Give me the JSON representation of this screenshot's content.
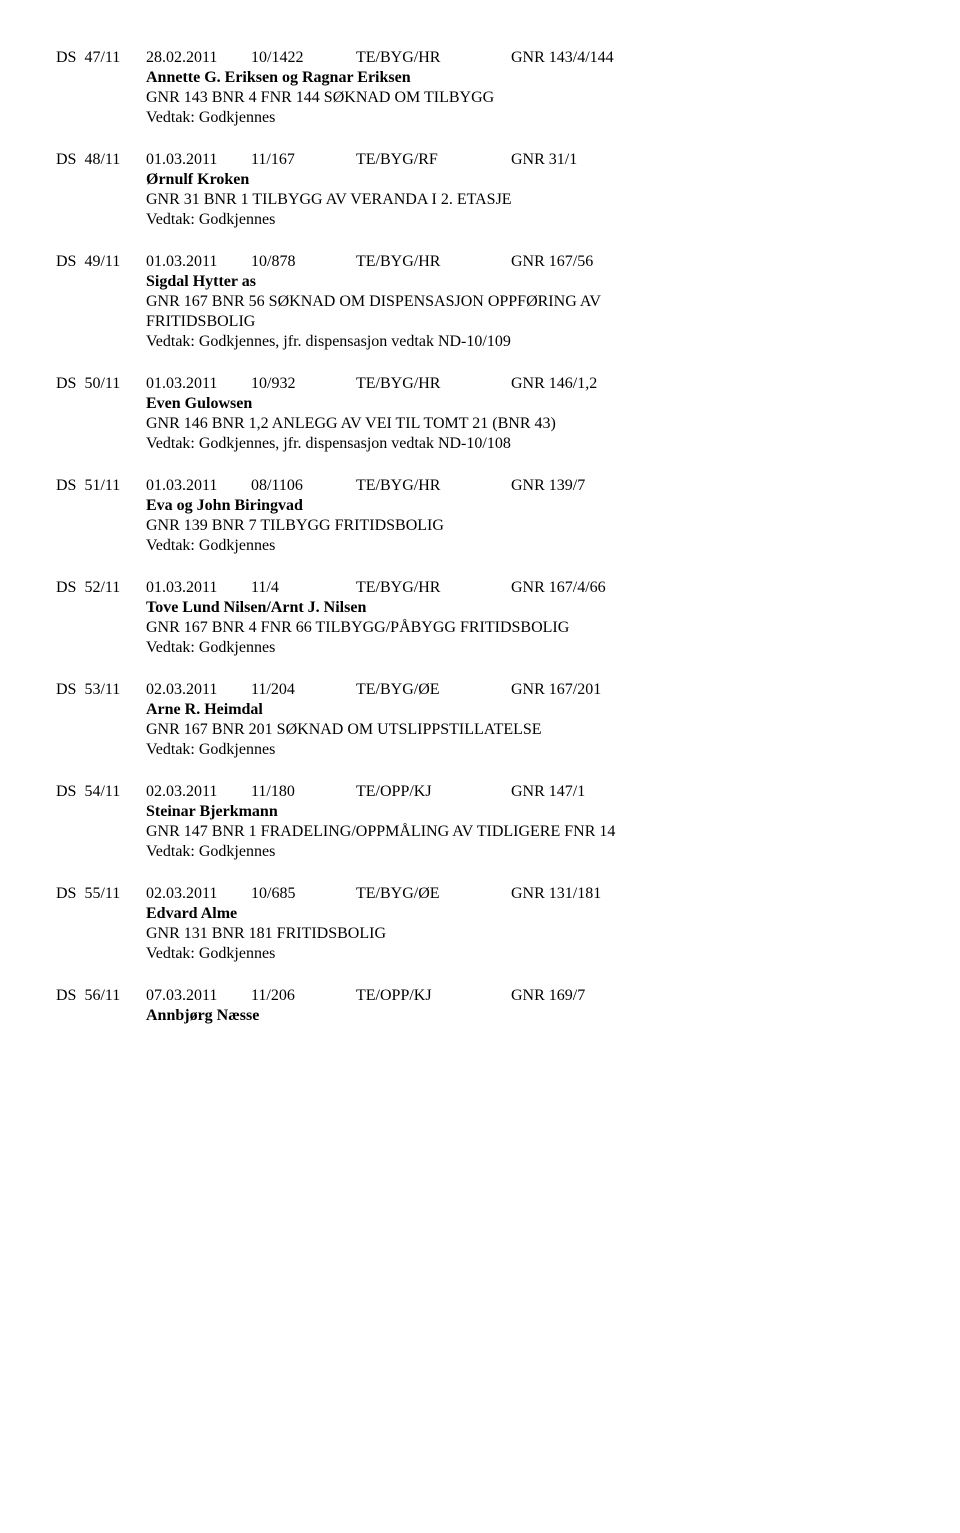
{
  "entries": [
    {
      "ds": "DS  47/11",
      "date": "28.02.2011",
      "case": "10/1422",
      "dept": "TE/BYG/HR",
      "gnr": "GNR 143/4/144",
      "party": "Annette G. Eriksen og Ragnar Eriksen",
      "lines": [
        "GNR 143 BNR 4 FNR 144 SØKNAD OM TILBYGG",
        "Vedtak: Godkjennes"
      ]
    },
    {
      "ds": "DS  48/11",
      "date": "01.03.2011",
      "case": "11/167",
      "dept": "TE/BYG/RF",
      "gnr": "GNR 31/1",
      "party": "Ørnulf Kroken",
      "lines": [
        "GNR 31 BNR 1 TILBYGG AV VERANDA I 2. ETASJE",
        "Vedtak: Godkjennes"
      ]
    },
    {
      "ds": "DS  49/11",
      "date": "01.03.2011",
      "case": "10/878",
      "dept": "TE/BYG/HR",
      "gnr": "GNR 167/56",
      "party": "Sigdal Hytter as",
      "lines": [
        "GNR 167 BNR 56 SØKNAD OM DISPENSASJON OPPFØRING AV",
        "FRITIDSBOLIG",
        "Vedtak: Godkjennes, jfr. dispensasjon vedtak ND-10/109"
      ]
    },
    {
      "ds": "DS  50/11",
      "date": "01.03.2011",
      "case": "10/932",
      "dept": "TE/BYG/HR",
      "gnr": "GNR 146/1,2",
      "party": "Even Gulowsen",
      "lines": [
        "GNR 146 BNR 1,2  ANLEGG AV VEI TIL TOMT 21 (BNR 43)",
        "Vedtak: Godkjennes, jfr. dispensasjon vedtak ND-10/108"
      ]
    },
    {
      "ds": "DS  51/11",
      "date": "01.03.2011",
      "case": "08/1106",
      "dept": "TE/BYG/HR",
      "gnr": "GNR 139/7",
      "party": "Eva og John Biringvad",
      "lines": [
        "GNR 139 BNR 7 TILBYGG FRITIDSBOLIG",
        "Vedtak: Godkjennes"
      ]
    },
    {
      "ds": "DS  52/11",
      "date": "01.03.2011",
      "case": "11/4",
      "dept": "TE/BYG/HR",
      "gnr": "GNR 167/4/66",
      "party": "Tove Lund Nilsen/Arnt J. Nilsen",
      "lines": [
        "GNR 167 BNR 4 FNR 66 TILBYGG/PÅBYGG FRITIDSBOLIG",
        "Vedtak: Godkjennes"
      ]
    },
    {
      "ds": "DS  53/11",
      "date": "02.03.2011",
      "case": "11/204",
      "dept": "TE/BYG/ØE",
      "gnr": "GNR 167/201",
      "party": "Arne R. Heimdal",
      "lines": [
        "GNR 167 BNR 201 SØKNAD OM UTSLIPPSTILLATELSE",
        "Vedtak: Godkjennes"
      ]
    },
    {
      "ds": "DS  54/11",
      "date": "02.03.2011",
      "case": "11/180",
      "dept": "TE/OPP/KJ",
      "gnr": "GNR 147/1",
      "party": "Steinar Bjerkmann",
      "lines": [
        "GNR 147 BNR 1 FRADELING/OPPMÅLING AV TIDLIGERE FNR 14",
        "Vedtak: Godkjennes"
      ]
    },
    {
      "ds": "DS  55/11",
      "date": "02.03.2011",
      "case": "10/685",
      "dept": "TE/BYG/ØE",
      "gnr": "GNR 131/181",
      "party": "Edvard Alme",
      "lines": [
        "GNR 131 BNR 181 FRITIDSBOLIG",
        "Vedtak: Godkjennes"
      ]
    },
    {
      "ds": "DS  56/11",
      "date": "07.03.2011",
      "case": "11/206",
      "dept": "TE/OPP/KJ",
      "gnr": "GNR 169/7",
      "party": "Annbjørg Næsse",
      "lines": []
    }
  ]
}
